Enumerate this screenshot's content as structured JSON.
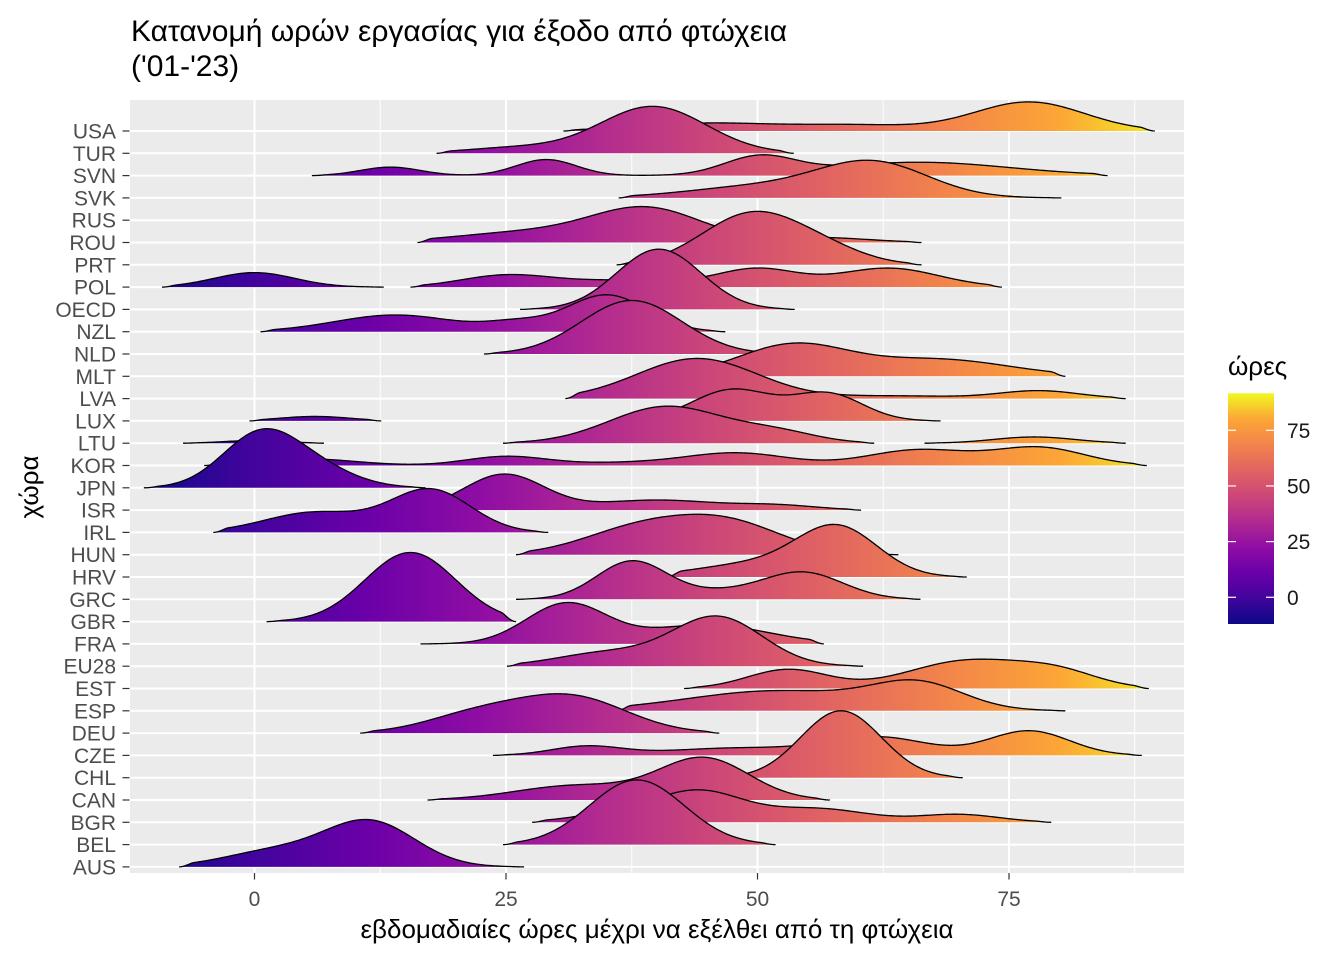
{
  "chart_data": {
    "type": "ridgeline",
    "title": [
      "Κατανομή ωρών εργασίας για έξοδο από φτώχεια",
      "('01-'23)"
    ],
    "xlabel": "εβδομαδιαίες ώρες μέχρι να εξέλθει από τη φτώχεια",
    "ylabel": "χώρα",
    "xlim": [
      -12.4,
      92.4
    ],
    "x_ticks": [
      0,
      25,
      50,
      75
    ],
    "x_tick_labels": [
      "0",
      "25",
      "50",
      "75"
    ],
    "grid": true,
    "categories": [
      "USA",
      "TUR",
      "SVN",
      "SVK",
      "RUS",
      "ROU",
      "PRT",
      "POL",
      "OECD",
      "NZL",
      "NLD",
      "MLT",
      "LVA",
      "LUX",
      "LTU",
      "KOR",
      "JPN",
      "ISR",
      "IRL",
      "HUN",
      "HRV",
      "GRC",
      "GBR",
      "FRA",
      "EU28",
      "EST",
      "ESP",
      "DEU",
      "CZE",
      "CHL",
      "CAN",
      "BGR",
      "BEL",
      "AUS"
    ],
    "legend": {
      "title": "ώρες",
      "position": "right",
      "ticks": [
        0,
        25,
        50,
        75
      ],
      "tick_labels": [
        "0",
        "25",
        "50",
        "75"
      ],
      "limits": [
        -12,
        91.6
      ],
      "palette": [
        "#0d0887",
        "#41049d",
        "#6a00a8",
        "#8f0da4",
        "#b12a90",
        "#cc4778",
        "#e16462",
        "#f2844b",
        "#fca636",
        "#f0f921"
      ]
    },
    "colors": {
      "panel": "#EBEBEB",
      "grid": "#FFFFFF",
      "outline": "#000000",
      "axis_text": "#4D4D4D",
      "tick": "#333333"
    },
    "component_fields": [
      "mean",
      "sd",
      "density"
    ],
    "series": [
      {
        "name": "USA",
        "segments": [
          {
            "range": [
              30.7,
              89.5
            ],
            "components": [
              [
                45,
                7,
                0.35
              ],
              [
                60,
                6,
                0.25
              ],
              [
                77,
                5.5,
                1.3
              ]
            ]
          }
        ]
      },
      {
        "name": "TUR",
        "segments": [
          {
            "range": [
              18.1,
              53.6
            ],
            "components": [
              [
                39.6,
                5.3,
                2.1
              ],
              [
                26,
                5,
                0.25
              ]
            ]
          }
        ]
      },
      {
        "name": "SVN",
        "segments": [
          {
            "range": [
              5.7,
              84.8
            ],
            "components": [
              [
                13.5,
                3,
                0.38
              ],
              [
                29,
                3,
                0.72
              ],
              [
                50.2,
                3.5,
                0.8
              ],
              [
                66,
                9,
                0.6
              ]
            ]
          }
        ]
      },
      {
        "name": "SVK",
        "segments": [
          {
            "range": [
              36.2,
              80.2
            ],
            "components": [
              [
                61.5,
                5.5,
                1.55
              ],
              [
                50,
                7,
                0.5
              ]
            ]
          }
        ]
      },
      {
        "name": "RUS",
        "segments": [
          {
            "range": [
              36,
              44
            ],
            "components": [
              [
                40,
                2.5,
                0.3
              ]
            ]
          }
        ]
      },
      {
        "name": "ROU",
        "segments": [
          {
            "range": [
              16.2,
              66.3
            ],
            "components": [
              [
                39,
                5.5,
                1.5
              ],
              [
                27,
                7,
                0.45
              ],
              [
                56,
                5,
                0.22
              ]
            ]
          }
        ]
      },
      {
        "name": "PRT",
        "segments": [
          {
            "range": [
              36,
              66.3
            ],
            "components": [
              [
                49.5,
                5,
                2.3
              ],
              [
                57,
                4,
                0.5
              ]
            ]
          }
        ]
      },
      {
        "name": "POL",
        "segments": [
          {
            "range": [
              -9.2,
              12.85
            ],
            "components": [
              [
                0,
                4,
                0.65
              ]
            ]
          },
          {
            "range": [
              15.5,
              74.3
            ],
            "components": [
              [
                25,
                4.5,
                0.52
              ],
              [
                37,
                6,
                0.3
              ],
              [
                50,
                4,
                0.8
              ],
              [
                63,
                5,
                0.85
              ]
            ]
          }
        ]
      },
      {
        "name": "OECD",
        "segments": [
          {
            "range": [
              26.4,
              53.7
            ],
            "components": [
              [
                40.2,
                4.2,
                2.7
              ]
            ]
          }
        ]
      },
      {
        "name": "NZL",
        "segments": [
          {
            "range": [
              0.6,
              46.8
            ],
            "components": [
              [
                14,
                6,
                0.75
              ],
              [
                26,
                3,
                0.35
              ],
              [
                35,
                4,
                1.65
              ]
            ]
          }
        ]
      },
      {
        "name": "NLD",
        "segments": [
          {
            "range": [
              22.8,
              52
            ],
            "components": [
              [
                37.5,
                5,
                2.4
              ]
            ]
          }
        ]
      },
      {
        "name": "MLT",
        "segments": [
          {
            "range": [
              38,
              80.6
            ],
            "components": [
              [
                53.5,
                5.5,
                1.4
              ],
              [
                68,
                7,
                0.75
              ]
            ]
          }
        ]
      },
      {
        "name": "LVA",
        "segments": [
          {
            "range": [
              30.9,
              86.6
            ],
            "components": [
              [
                44,
                6,
                1.8
              ],
              [
                64,
                6,
                0.12
              ],
              [
                78,
                4,
                0.35
              ]
            ]
          }
        ]
      },
      {
        "name": "LUX",
        "segments": [
          {
            "range": [
              -0.5,
              12.6
            ],
            "components": [
              [
                6,
                3.5,
                0.2
              ]
            ]
          },
          {
            "range": [
              38,
              68.2
            ],
            "components": [
              [
                47.5,
                4,
                1.4
              ],
              [
                57,
                3.5,
                1.2
              ]
            ]
          }
        ]
      },
      {
        "name": "LTU",
        "segments": [
          {
            "range": [
              -7.1,
              6.9
            ],
            "components": [
              [
                0,
                3,
                0.12
              ]
            ]
          },
          {
            "range": [
              24.7,
              61.6
            ],
            "components": [
              [
                41,
                5.7,
                1.65
              ],
              [
                52,
                4,
                0.45
              ]
            ]
          },
          {
            "range": [
              66.6,
              86.6
            ],
            "components": [
              [
                77.5,
                4,
                0.28
              ]
            ]
          }
        ]
      },
      {
        "name": "KOR",
        "segments": [
          {
            "range": [
              -5,
              88.7
            ],
            "components": [
              [
                5,
                5,
                0.3
              ],
              [
                25,
                4,
                0.4
              ],
              [
                37,
                6,
                0.12
              ],
              [
                48,
                5,
                0.55
              ],
              [
                66,
                5,
                0.7
              ],
              [
                78,
                4.5,
                0.8
              ]
            ]
          }
        ]
      },
      {
        "name": "JPN",
        "segments": [
          {
            "range": [
              -11,
              17
            ],
            "components": [
              [
                0.5,
                3.8,
                2.3
              ],
              [
                6,
                4,
                0.8
              ]
            ]
          }
        ]
      },
      {
        "name": "ISR",
        "segments": [
          {
            "range": [
              15,
              60.3
            ],
            "components": [
              [
                24.8,
                4,
                1.6
              ],
              [
                40,
                6,
                0.45
              ],
              [
                52,
                4,
                0.2
              ]
            ]
          }
        ]
      },
      {
        "name": "IRL",
        "segments": [
          {
            "range": [
              -4.1,
              29.2
            ],
            "components": [
              [
                17.5,
                4,
                1.9
              ],
              [
                6,
                5,
                0.9
              ]
            ]
          }
        ]
      },
      {
        "name": "HUN",
        "segments": [
          {
            "range": [
              26,
              64
            ],
            "components": [
              [
                38,
                5.5,
                1.1
              ],
              [
                47,
                5.5,
                1.4
              ]
            ]
          }
        ]
      },
      {
        "name": "HRV",
        "segments": [
          {
            "range": [
              41,
              70.8
            ],
            "components": [
              [
                58,
                4,
                2.1
              ],
              [
                50,
                6,
                0.6
              ]
            ]
          }
        ]
      },
      {
        "name": "GRC",
        "segments": [
          {
            "range": [
              26,
              66.2
            ],
            "components": [
              [
                37.5,
                3.5,
                1.7
              ],
              [
                46,
                4,
                0.3
              ],
              [
                54.5,
                4,
                1.2
              ]
            ]
          }
        ]
      },
      {
        "name": "GBR",
        "segments": [
          {
            "range": [
              1.2,
              26
            ],
            "components": [
              [
                15.5,
                4.5,
                3.1
              ]
            ]
          }
        ]
      },
      {
        "name": "FRA",
        "segments": [
          {
            "range": [
              16.5,
              56.6
            ],
            "components": [
              [
                31,
                4,
                1.8
              ],
              [
                45,
                6,
                0.85
              ]
            ]
          }
        ]
      },
      {
        "name": "EU28",
        "segments": [
          {
            "range": [
              25.1,
              60.5
            ],
            "components": [
              [
                46,
                4.5,
                2.2
              ],
              [
                35,
                5,
                0.6
              ]
            ]
          }
        ]
      },
      {
        "name": "EST",
        "segments": [
          {
            "range": [
              42.7,
              88.9
            ],
            "components": [
              [
                53,
                4,
                0.85
              ],
              [
                71,
                6,
                1.25
              ],
              [
                80,
                4,
                0.6
              ]
            ]
          }
        ]
      },
      {
        "name": "ESP",
        "segments": [
          {
            "range": [
              36,
              80.6
            ],
            "components": [
              [
                66,
                4.5,
                1.1
              ],
              [
                52,
                9,
                0.9
              ]
            ]
          }
        ]
      },
      {
        "name": "DEU",
        "segments": [
          {
            "range": [
              10.5,
              46.2
            ],
            "components": [
              [
                31.5,
                5.5,
                1.6
              ],
              [
                22,
                5,
                0.8
              ]
            ]
          }
        ]
      },
      {
        "name": "CZE",
        "segments": [
          {
            "range": [
              23.7,
              88.2
            ],
            "components": [
              [
                33,
                3.5,
                0.4
              ],
              [
                48,
                7,
                0.33
              ],
              [
                62,
                5,
                0.8
              ],
              [
                77,
                4,
                1.1
              ]
            ]
          }
        ]
      },
      {
        "name": "CHL",
        "segments": [
          {
            "range": [
              45,
              70.4
            ],
            "components": [
              [
                58.3,
                4,
                3.0
              ]
            ]
          }
        ]
      },
      {
        "name": "CAN",
        "segments": [
          {
            "range": [
              17.2,
              57.2
            ],
            "components": [
              [
                44.7,
                4.5,
                1.85
              ],
              [
                32,
                6,
                0.65
              ]
            ]
          }
        ]
      },
      {
        "name": "BGR",
        "segments": [
          {
            "range": [
              27.6,
              79.2
            ],
            "components": [
              [
                35,
                4,
                0.3
              ],
              [
                44,
                4.5,
                1.4
              ],
              [
                56,
                5,
                0.6
              ],
              [
                70,
                4,
                0.35
              ]
            ]
          }
        ]
      },
      {
        "name": "BEL",
        "segments": [
          {
            "range": [
              24.7,
              51.8
            ],
            "components": [
              [
                38,
                4.7,
                2.9
              ]
            ]
          }
        ]
      },
      {
        "name": "AUS",
        "segments": [
          {
            "range": [
              -7.5,
              26.8
            ],
            "components": [
              [
                11.5,
                4.5,
                2.0
              ],
              [
                2,
                5,
                0.7
              ]
            ]
          }
        ]
      }
    ]
  }
}
